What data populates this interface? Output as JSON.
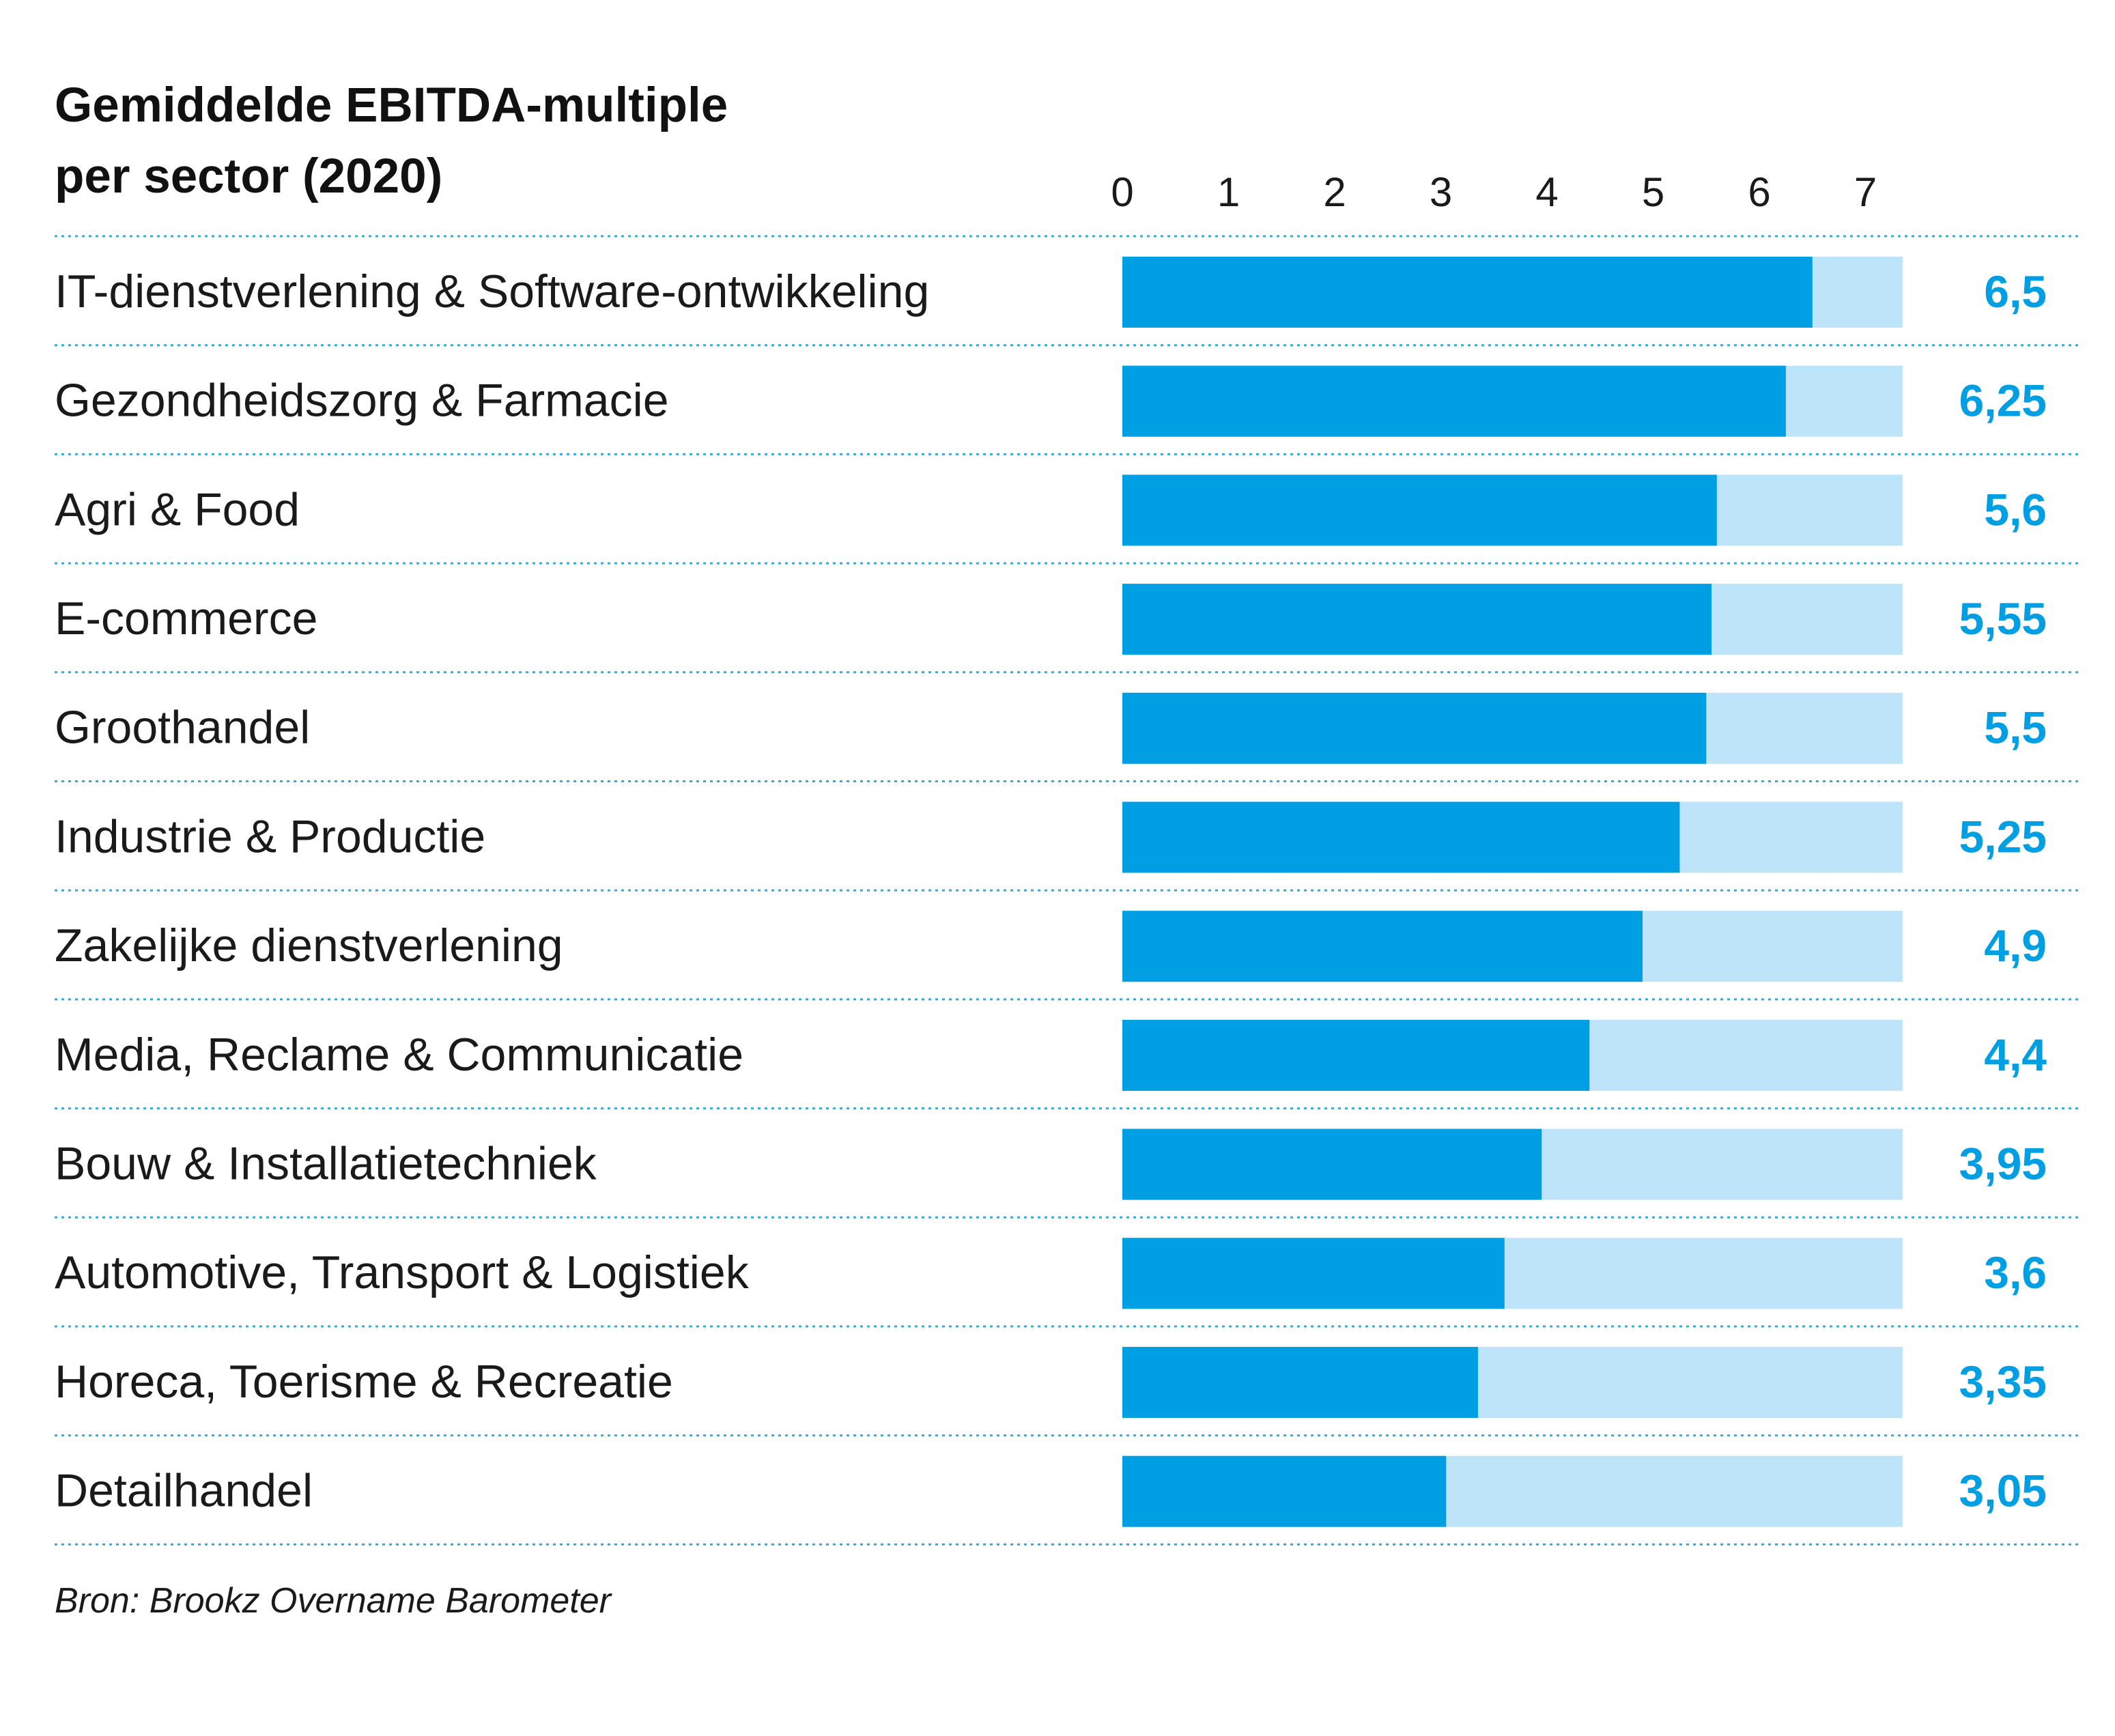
{
  "chart_data": {
    "type": "bar",
    "orientation": "horizontal",
    "title": [
      "Gemiddelde EBITDA-multiple",
      "per sector (2020)"
    ],
    "categories": [
      "IT-dienstverlening & Software-ontwikkeling",
      "Gezondheidszorg & Farmacie",
      "Agri & Food",
      "E-commerce",
      "Groothandel",
      "Industrie & Productie",
      "Zakelijke dienstverlening",
      "Media, Reclame & Communicatie",
      "Bouw & Installatietechniek",
      "Automotive, Transport & Logistiek",
      "Horeca, Toerisme & Recreatie",
      "Detailhandel"
    ],
    "values": [
      6.5,
      6.25,
      5.6,
      5.55,
      5.5,
      5.25,
      4.9,
      4.4,
      3.95,
      3.6,
      3.35,
      3.05
    ],
    "value_labels": [
      "6,5",
      "6,25",
      "5,6",
      "5,55",
      "5,5",
      "5,25",
      "4,9",
      "4,4",
      "3,95",
      "3,6",
      "3,35",
      "3,05"
    ],
    "xticks": [
      "0",
      "1",
      "2",
      "3",
      "4",
      "5",
      "6",
      "7"
    ],
    "xlim": [
      0,
      7.35
    ],
    "grid": false,
    "source": "Bron: Brookz Overname Barometer",
    "colors": {
      "bar": "#009fe3",
      "track": "#bde4f8",
      "value_label": "#009fe3",
      "separator": "#35a9dc",
      "text": "#1a1a1a"
    }
  }
}
